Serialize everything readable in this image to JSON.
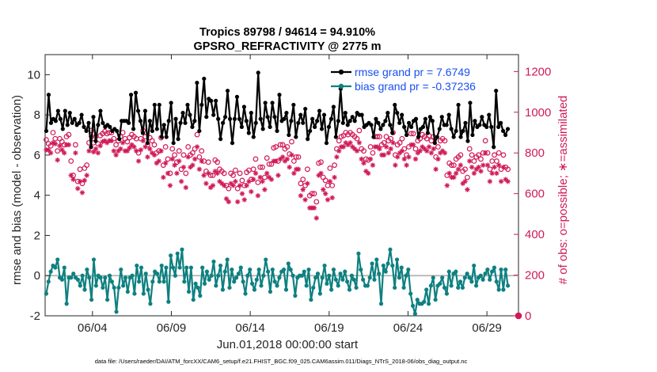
{
  "chart_data": {
    "type": "line",
    "title": "Tropics 89798 / 94614 = 94.910%",
    "subtitle": "GPSRO_REFRACTIVITY @ 2775 m",
    "ylabel": "rmse and bias (model - observation)",
    "ylabel_right": "# of obs: o=possible; ∗=assimilated",
    "xlabel": "Jun.01,2018 00:00:00 start",
    "footnote": "data file: /Users/raeder/DAI/ATM_forcXX/CAM6_setup/f.e21.FHIST_BGC.f09_025.CAM6assim.011/Diags_NTrS_2018-06/obs_diag_output.nc",
    "xlim": [
      1,
      31
    ],
    "ylim": [
      -2,
      11
    ],
    "ylim_right": [
      0,
      1283
    ],
    "x_ticks": [
      4,
      9,
      14,
      19,
      24,
      29
    ],
    "x_tick_labels": [
      "06/04",
      "06/09",
      "06/14",
      "06/19",
      "06/24",
      "06/29"
    ],
    "y_ticks": [
      -2,
      0,
      2,
      4,
      6,
      8,
      10
    ],
    "y_tick_labels": [
      "-2",
      "0",
      "2",
      "4",
      "6",
      "8",
      "10"
    ],
    "y_ticks_right": [
      0,
      200,
      400,
      600,
      800,
      1000,
      1200
    ],
    "y_tick_labels_right": [
      "0",
      "200",
      "400",
      "600",
      "800",
      "1000",
      "1200"
    ],
    "zero_line": 0,
    "legend": {
      "placement": "top-right",
      "entries": [
        {
          "label": "rmse grand pr = 7.6749",
          "color": "#000000"
        },
        {
          "label": "bias grand pr = -0.37236",
          "color": "#0e8080"
        }
      ]
    },
    "series": [
      {
        "name": "rmse",
        "color": "#000000",
        "axis": "left",
        "values": [
          7.2,
          9.0,
          7.6,
          7.8,
          7.7,
          8.2,
          7.8,
          7.3,
          8.2,
          7.5,
          8.1,
          7.6,
          7.8,
          7.5,
          7.6,
          8.0,
          7.4,
          7.2,
          7.6,
          6.4,
          7.9,
          6.7,
          7.5,
          8.2,
          7.6,
          7.4,
          7.5,
          7.4,
          7.2,
          7.3,
          7.2,
          6.8,
          7.7,
          7.7,
          7.7,
          7.6,
          9.0,
          7.3,
          9.1,
          8.2,
          7.7,
          7.1,
          8.2,
          6.6,
          7.7,
          7.2,
          8.5,
          7.3,
          8.5,
          6.9,
          7.5,
          6.9,
          7.7,
          8.6,
          6.6,
          7.8,
          6.8,
          7.6,
          8.1,
          7.6,
          8.5,
          8.0,
          7.4,
          7.7,
          9.6,
          7.2,
          8.5,
          9.8,
          7.9,
          8.8,
          8.7,
          8.0,
          8.7,
          7.8,
          6.8,
          7.6,
          7.9,
          9.2,
          7.8,
          6.6,
          7.8,
          8.9,
          7.8,
          7.4,
          8.4,
          7.7,
          7.1,
          8.1,
          6.9,
          7.6,
          10.1,
          7.8,
          7.3,
          8.6,
          7.9,
          7.4,
          8.6,
          7.9,
          7.2,
          9.0,
          7.7,
          7.8,
          8.1,
          7.0,
          7.7,
          8.5,
          6.9,
          7.6,
          8.0,
          7.6,
          8.3,
          6.8,
          7.2,
          7.8,
          7.4,
          7.7,
          8.2,
          7.3,
          8.0,
          6.6,
          7.4,
          7.8,
          8.4,
          6.9,
          7.7,
          9.3,
          7.6,
          8.1,
          7.5,
          7.7,
          7.9,
          7.7,
          8.1,
          8.0,
          8.0,
          7.4,
          7.5,
          7.6,
          7.5,
          6.9,
          7.8,
          7.6,
          7.3,
          7.5,
          7.7,
          8.1,
          7.5,
          7.1,
          8.5,
          8.1,
          7.6,
          8.0,
          7.4,
          7.0,
          7.6,
          7.4,
          7.7,
          7.8,
          6.9,
          7.3,
          7.4,
          7.8,
          7.1,
          7.9,
          7.7,
          6.6,
          6.9,
          7.3,
          7.9,
          7.5,
          7.5,
          8.0,
          7.3,
          6.9,
          7.2,
          8.5,
          6.9,
          7.2,
          7.6,
          6.7,
          8.6,
          7.0,
          7.7,
          7.4,
          7.5,
          7.9,
          7.5,
          7.4,
          8.0,
          7.4,
          6.4,
          9.2,
          7.4,
          7.6,
          7.2,
          7.0,
          7.3
        ]
      },
      {
        "name": "bias",
        "color": "#0e8080",
        "axis": "left",
        "values": [
          -0.9,
          -0.3,
          0.2,
          0.5,
          0.4,
          0.8,
          -0.1,
          -0.2,
          0.4,
          -1.4,
          -0.1,
          -0.1,
          0.1,
          -0.1,
          -0.2,
          -0.5,
          0.0,
          -0.7,
          0.3,
          -0.1,
          -1.2,
          0.8,
          -0.5,
          0.0,
          -0.1,
          -0.6,
          -0.1,
          -1.2,
          0.0,
          -0.3,
          -0.6,
          -1.8,
          -0.6,
          0.3,
          -0.5,
          -0.1,
          -0.8,
          -0.1,
          0.0,
          -0.9,
          0.5,
          -0.3,
          0.4,
          -0.9,
          0.1,
          -0.7,
          -1.4,
          -0.3,
          0.2,
          0.1,
          -0.3,
          0.5,
          -0.3,
          0.4,
          -1.3,
          1.0,
          0.4,
          0.0,
          1.1,
          0.4,
          1.3,
          -0.3,
          0.4,
          -0.8,
          0.4,
          -1.2,
          -0.4,
          -0.6,
          -1.0,
          0.4,
          -0.4,
          0.2,
          -0.2,
          0.0,
          0.7,
          -0.5,
          0.0,
          0.5,
          -0.7,
          0.2,
          0.8,
          -0.6,
          0.3,
          -0.3,
          -0.1,
          0.1,
          0.4,
          -0.3,
          -0.9,
          0.0,
          0.3,
          -0.4,
          -0.7,
          -0.2,
          0.3,
          -0.5,
          0.0,
          0.8,
          0.2,
          -0.8,
          0.3,
          -0.3,
          -0.5,
          -0.1,
          0.2,
          0.3,
          -0.7,
          0.6,
          0.3,
          0.0,
          -1.0,
          -0.1,
          0.0,
          0.0,
          0.2,
          -0.5,
          0.3,
          -1.2,
          -0.6,
          -0.1,
          0.1,
          -0.9,
          -0.1,
          0.5,
          -0.4,
          0.0,
          -0.7,
          0.3,
          -0.2,
          -0.5,
          0.1,
          -0.2,
          0.2,
          -0.3,
          -0.7,
          0.0,
          -0.2,
          -0.6,
          1.1,
          0.3,
          -0.2,
          -0.5,
          -0.5,
          -0.1,
          0.6,
          -0.2,
          0.8,
          0.1,
          -1.4,
          0.5,
          0.2,
          0.6,
          1.3,
          0.5,
          -0.6,
          0.8,
          -0.1,
          0.4,
          -0.6,
          0.0,
          0.3,
          -0.9,
          -1.5,
          -1.9,
          -1.2,
          -1.4,
          -1.4,
          -1.3,
          -0.7,
          -1.4,
          -0.5,
          -0.1,
          -1.2,
          -0.5,
          -0.4,
          -0.1,
          -0.6,
          -0.9,
          0.2,
          -0.5,
          0.1,
          0.2,
          -0.6,
          -0.3,
          -0.6,
          -0.1,
          0.1,
          -0.1,
          -0.3,
          0.5,
          -0.5,
          -0.1,
          0.0,
          -0.2,
          0.1,
          0.3,
          -0.2,
          0.2,
          0.4,
          -0.3,
          -0.7,
          0.3,
          -0.7,
          0.3,
          -0.5
        ]
      },
      {
        "name": "obs possible",
        "marker": "o",
        "color": "#d01a57",
        "axis": "right",
        "values": [
          865,
          845,
          835,
          900,
          870,
          810,
          870,
          855,
          840,
          880,
          890,
          760,
          690,
          840,
          660,
          720,
          650,
          725,
          740,
          850,
          910,
          850,
          880,
          845,
          885,
          895,
          905,
          895,
          900,
          900,
          870,
          840,
          860,
          880,
          900,
          870,
          855,
          875,
          890,
          880,
          870,
          800,
          870,
          910,
          880,
          840,
          875,
          860,
          840,
          800,
          810,
          875,
          740,
          830,
          770,
          700,
          820,
          790,
          755,
          810,
          720,
          790,
          700,
          830,
          790,
          800,
          820,
          890,
          780,
          810,
          760,
          710,
          755,
          690,
          690,
          765,
          755,
          720,
          710,
          700,
          640,
          625,
          700,
          690,
          715,
          625,
          700,
          665,
          640,
          705,
          715,
          670,
          720,
          770,
          655,
          730,
          730,
          680,
          775,
          745,
          745,
          825,
          830,
          760,
          840,
          840,
          820,
          830,
          795,
          855,
          760,
          780,
          780,
          650,
          670,
          640,
          720,
          590,
          600,
          600,
          560,
          750,
          755,
          680,
          665,
          640,
          725,
          640,
          740,
          820,
          860,
          880,
          885,
          900,
          890,
          900,
          890,
          880,
          870,
          910,
          820,
          810,
          770,
          765,
          830,
          800,
          880,
          880,
          880,
          840,
          850,
          880,
          860,
          870,
          900,
          790,
          840,
          850,
          870,
          820,
          790,
          830,
          895,
          895,
          820,
          860,
          870,
          890,
          880,
          870,
          885,
          860,
          880,
          780,
          830,
          860,
          870,
          860,
          690,
          750,
          740,
          740,
          770,
          780,
          790,
          710,
          720,
          680,
          820,
          790,
          760,
          780,
          790,
          770,
          800,
          860,
          800,
          720,
          760,
          790,
          760,
          800,
          720,
          790,
          730,
          720
        ]
      },
      {
        "name": "obs assimilated",
        "marker": "*",
        "color": "#d01a57",
        "axis": "right",
        "values": [
          815,
          815,
          800,
          850,
          845,
          765,
          835,
          815,
          800,
          840,
          840,
          690,
          670,
          800,
          625,
          660,
          605,
          665,
          690,
          810,
          880,
          805,
          820,
          800,
          835,
          855,
          860,
          850,
          860,
          860,
          810,
          790,
          810,
          820,
          850,
          810,
          810,
          825,
          840,
          830,
          810,
          760,
          815,
          860,
          830,
          780,
          820,
          800,
          790,
          750,
          760,
          810,
          680,
          750,
          700,
          640,
          770,
          740,
          700,
          760,
          660,
          730,
          630,
          780,
          730,
          740,
          770,
          830,
          720,
          760,
          690,
          650,
          700,
          630,
          640,
          710,
          700,
          660,
          650,
          640,
          575,
          560,
          650,
          640,
          660,
          560,
          640,
          600,
          570,
          640,
          660,
          610,
          670,
          700,
          590,
          680,
          660,
          620,
          700,
          680,
          670,
          760,
          760,
          690,
          770,
          780,
          760,
          770,
          730,
          790,
          700,
          720,
          720,
          590,
          620,
          570,
          650,
          530,
          530,
          530,
          480,
          690,
          700,
          620,
          600,
          570,
          660,
          580,
          680,
          780,
          810,
          830,
          830,
          850,
          840,
          850,
          830,
          820,
          810,
          850,
          770,
          750,
          710,
          700,
          770,
          740,
          830,
          830,
          820,
          790,
          790,
          830,
          800,
          820,
          850,
          740,
          780,
          800,
          810,
          770,
          740,
          780,
          840,
          840,
          770,
          800,
          810,
          830,
          820,
          810,
          830,
          800,
          820,
          720,
          770,
          800,
          810,
          800,
          640,
          700,
          680,
          680,
          700,
          720,
          740,
          650,
          660,
          620,
          760,
          730,
          700,
          720,
          730,
          710,
          740,
          800,
          740,
          660,
          700,
          730,
          700,
          740,
          660,
          730,
          670,
          660
        ]
      }
    ],
    "extra_points": [
      {
        "name": "day31 zero count",
        "x": 31,
        "y_right": 0,
        "marker": "o",
        "color": "#d01a57"
      }
    ]
  }
}
